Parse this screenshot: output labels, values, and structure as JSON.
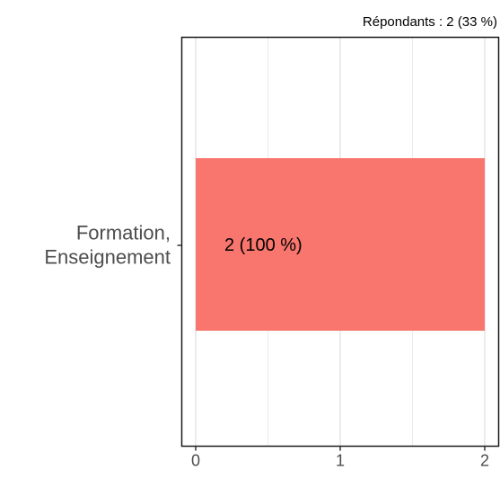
{
  "chart_data": {
    "type": "bar",
    "orientation": "horizontal",
    "caption": "Répondants : 2 (33 %)",
    "categories": [
      [
        "Formation,",
        "Enseignement"
      ]
    ],
    "values": [
      2
    ],
    "data_labels": [
      "2 (100 %)"
    ],
    "xlim": [
      0,
      2
    ],
    "x_ticks": [
      {
        "value": 0,
        "label": "0"
      },
      {
        "value": 1,
        "label": "1"
      },
      {
        "value": 2,
        "label": "2"
      }
    ],
    "grid": true,
    "bar_color": "#F8766D",
    "panel_border_color": "#1a1a1a",
    "grid_color": "#ebebeb"
  }
}
